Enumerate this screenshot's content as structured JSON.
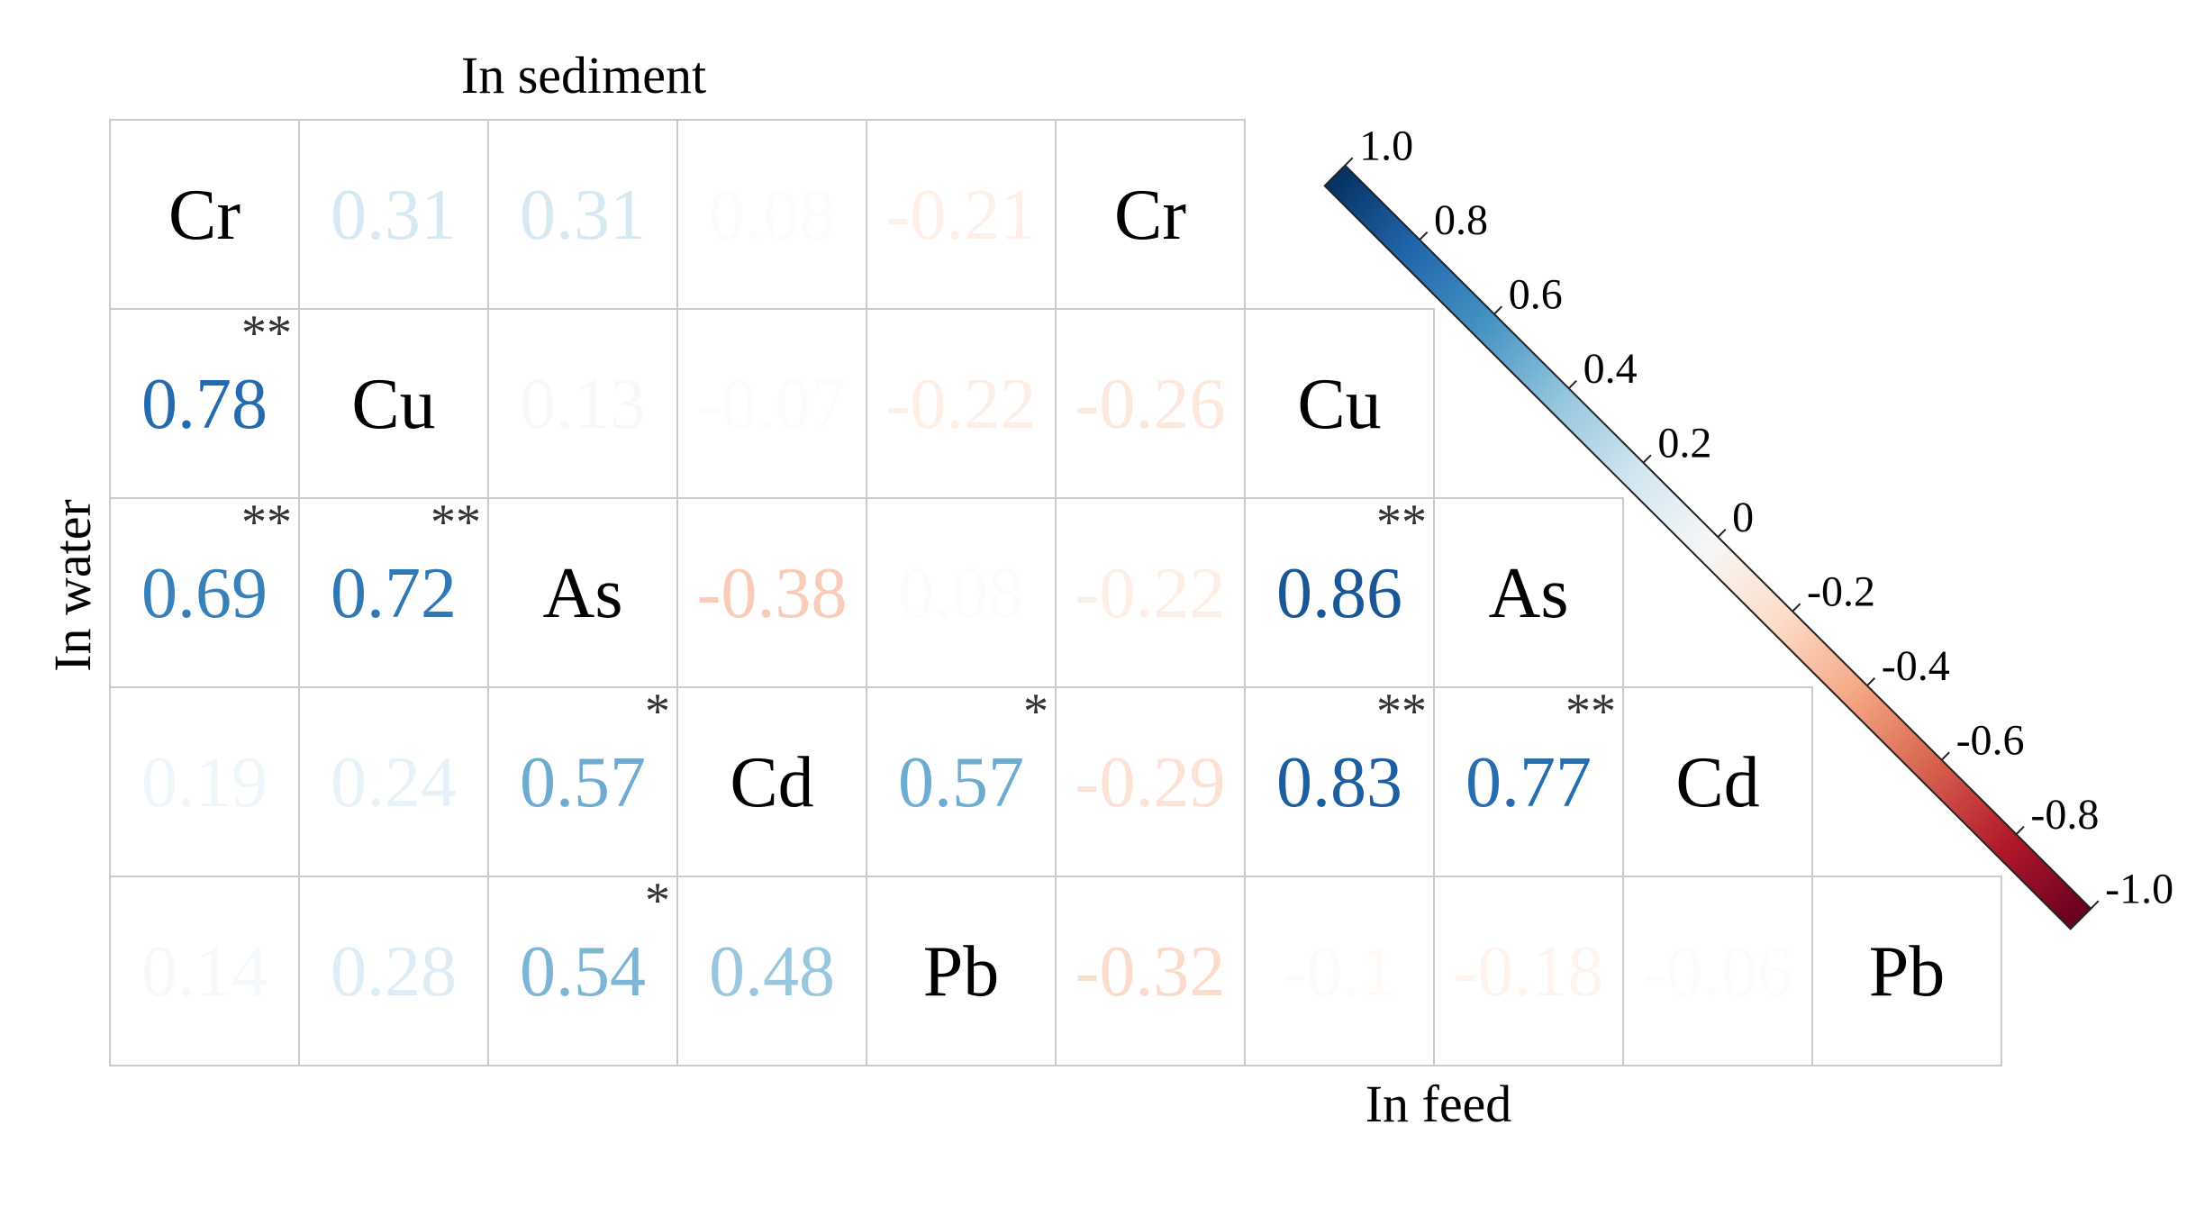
{
  "chart_data": {
    "type": "heatmap",
    "variables": [
      "Cr",
      "Cu",
      "As",
      "Cd",
      "Pb"
    ],
    "labels": {
      "top": "In sediment",
      "left": "In water",
      "bottom": "In feed"
    },
    "colormap": {
      "min": -1.0,
      "max": 1.0,
      "stops": [
        "#67001f",
        "#b2182b",
        "#d6604d",
        "#f4a582",
        "#fddbc7",
        "#f7f7f7",
        "#d1e5f0",
        "#92c5de",
        "#4393c3",
        "#2166ac",
        "#053061"
      ],
      "ticks": [
        "1.0",
        "0.8",
        "0.6",
        "0.4",
        "0.2",
        "0",
        "-0.2",
        "-0.4",
        "-0.6",
        "-0.8",
        "-1.0"
      ]
    },
    "water": [
      {
        "row": "Cu",
        "col": "Cr",
        "value": 0.78,
        "label": "0.78",
        "sig": "**"
      },
      {
        "row": "As",
        "col": "Cr",
        "value": 0.69,
        "label": "0.69",
        "sig": "**"
      },
      {
        "row": "As",
        "col": "Cu",
        "value": 0.72,
        "label": "0.72",
        "sig": "**"
      },
      {
        "row": "Cd",
        "col": "Cr",
        "value": 0.19,
        "label": "0.19",
        "sig": ""
      },
      {
        "row": "Cd",
        "col": "Cu",
        "value": 0.24,
        "label": "0.24",
        "sig": ""
      },
      {
        "row": "Cd",
        "col": "As",
        "value": 0.57,
        "label": "0.57",
        "sig": "*"
      },
      {
        "row": "Pb",
        "col": "Cr",
        "value": 0.14,
        "label": "0.14",
        "sig": ""
      },
      {
        "row": "Pb",
        "col": "Cu",
        "value": 0.28,
        "label": "0.28",
        "sig": ""
      },
      {
        "row": "Pb",
        "col": "As",
        "value": 0.54,
        "label": "0.54",
        "sig": "*"
      },
      {
        "row": "Pb",
        "col": "Cd",
        "value": 0.48,
        "label": "0.48",
        "sig": ""
      }
    ],
    "sediment": [
      {
        "row": "Cr",
        "col": "Cu",
        "value": 0.31,
        "label": "0.31",
        "sig": ""
      },
      {
        "row": "Cr",
        "col": "As",
        "value": 0.31,
        "label": "0.31",
        "sig": ""
      },
      {
        "row": "Cr",
        "col": "Cd",
        "value": 0.08,
        "label": "0.08",
        "sig": ""
      },
      {
        "row": "Cr",
        "col": "Pb",
        "value": -0.21,
        "label": "-0.21",
        "sig": ""
      },
      {
        "row": "Cu",
        "col": "As",
        "value": 0.13,
        "label": "0.13",
        "sig": ""
      },
      {
        "row": "Cu",
        "col": "Cd",
        "value": -0.07,
        "label": "-0.07",
        "sig": ""
      },
      {
        "row": "Cu",
        "col": "Pb",
        "value": -0.22,
        "label": "-0.22",
        "sig": ""
      },
      {
        "row": "As",
        "col": "Cd",
        "value": -0.38,
        "label": "-0.38",
        "sig": ""
      },
      {
        "row": "As",
        "col": "Pb",
        "value": 0.08,
        "label": "0.08",
        "sig": ""
      },
      {
        "row": "Cd",
        "col": "Pb",
        "value": 0.57,
        "label": "0.57",
        "sig": "*"
      }
    ],
    "feed": [
      {
        "row": "Cu",
        "col": "Cr",
        "value": -0.26,
        "label": "-0.26",
        "sig": ""
      },
      {
        "row": "As",
        "col": "Cr",
        "value": -0.22,
        "label": "-0.22",
        "sig": ""
      },
      {
        "row": "As",
        "col": "Cu",
        "value": 0.86,
        "label": "0.86",
        "sig": "**"
      },
      {
        "row": "Cd",
        "col": "Cr",
        "value": -0.29,
        "label": "-0.29",
        "sig": ""
      },
      {
        "row": "Cd",
        "col": "Cu",
        "value": 0.83,
        "label": "0.83",
        "sig": "**"
      },
      {
        "row": "Cd",
        "col": "As",
        "value": 0.77,
        "label": "0.77",
        "sig": "**"
      },
      {
        "row": "Pb",
        "col": "Cr",
        "value": -0.32,
        "label": "-0.32",
        "sig": ""
      },
      {
        "row": "Pb",
        "col": "Cu",
        "value": -0.1,
        "label": "-0.1",
        "sig": ""
      },
      {
        "row": "Pb",
        "col": "As",
        "value": -0.18,
        "label": "-0.18",
        "sig": ""
      },
      {
        "row": "Pb",
        "col": "Cd",
        "value": -0.06,
        "label": "-0.06",
        "sig": ""
      }
    ]
  }
}
